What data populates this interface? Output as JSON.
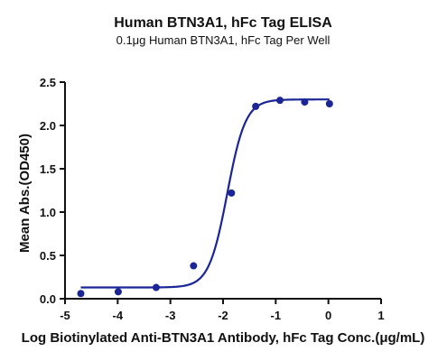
{
  "chart_data": {
    "type": "scatter",
    "title": "Human BTN3A1, hFc Tag ELISA",
    "subtitle": "0.1μg Human BTN3A1, hFc Tag Per Well",
    "xlabel": "Log Biotinylated Anti-BTN3A1 Antibody, hFc Tag Conc.(μg/mL)",
    "ylabel": "Mean Abs.(OD450)",
    "xlim": [
      -5,
      1
    ],
    "ylim": [
      0,
      2.5
    ],
    "x_ticks": [
      "-5",
      "-4",
      "-3",
      "-2",
      "-1",
      "0",
      "1"
    ],
    "y_ticks": [
      "0.0",
      "0.5",
      "1.0",
      "1.5",
      "2.0",
      "2.5"
    ],
    "grid": false,
    "colors": {
      "series": "#1a2596",
      "axis": "#111111"
    },
    "series": [
      {
        "points": [
          {
            "x": -4.7,
            "y": 0.06
          },
          {
            "x": -3.99,
            "y": 0.08
          },
          {
            "x": -3.27,
            "y": 0.13
          },
          {
            "x": -2.56,
            "y": 0.38
          },
          {
            "x": -1.84,
            "y": 1.22
          },
          {
            "x": -1.38,
            "y": 2.22
          },
          {
            "x": -0.92,
            "y": 2.29
          },
          {
            "x": -0.45,
            "y": 2.27
          },
          {
            "x": 0.02,
            "y": 2.25
          }
        ],
        "fit": {
          "model": "4PL",
          "bottom": 0.13,
          "top": 2.3,
          "log_ec50": -1.92,
          "hill": 2.5,
          "x_range": [
            -4.7,
            0.02
          ]
        }
      }
    ]
  }
}
